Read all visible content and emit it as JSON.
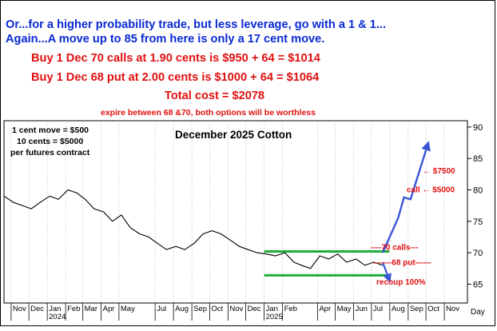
{
  "header": {
    "line1": "Or...for a higher probability trade, but less leverage, go with a 1 & 1...",
    "line2": "Again...A move up to 85 from here is only a 17 cent move.",
    "line3": "Buy 1 Dec 70 calls at 1.90 cents is $950 + 64 = $1014",
    "line4": "Buy 1 Dec 68 put at 2.00 cents is $1000 + 64 = $1064",
    "line5": "Total cost = $2078",
    "line6": "expire between 68 &70, both options will be worthless",
    "color_blue": "#0a2ad4",
    "color_red": "#e01010"
  },
  "legend_note": {
    "line1": "1 cent move = $500",
    "line2": "10 cents = $5000",
    "line3": "per futures contract"
  },
  "chart_data": {
    "type": "line",
    "title": "December 2025 Cotton",
    "ylim": [
      62,
      91
    ],
    "yticks": [
      65,
      70,
      75,
      80,
      85,
      90
    ],
    "xlabel_right": "Day",
    "month_labels": [
      "Nov",
      "Dec",
      "Jan",
      "Feb",
      "Mar",
      "Apr",
      "May",
      "Jul",
      "Aug",
      "Sep",
      "Oct",
      "Nov",
      "Dec",
      "Jan",
      "Feb",
      "Apr",
      "May",
      "Jun",
      "Jul",
      "Aug",
      "Sep",
      "Oct",
      "Nov"
    ],
    "year_labels": [
      "2024",
      "2025"
    ],
    "x_range": [
      "2023-10-20",
      "2025-12-10"
    ],
    "month_dates": [
      "2023-11-01",
      "2023-12-01",
      "2024-01-01",
      "2024-02-01",
      "2024-03-01",
      "2024-04-01",
      "2024-05-01",
      "2024-07-01",
      "2024-08-01",
      "2024-09-01",
      "2024-10-01",
      "2024-11-01",
      "2024-12-01",
      "2025-01-01",
      "2025-02-01",
      "2025-04-01",
      "2025-05-01",
      "2025-06-01",
      "2025-07-01",
      "2025-08-01",
      "2025-09-01",
      "2025-10-01",
      "2025-11-01"
    ],
    "year_dates": [
      "2024-01-01",
      "2025-01-01"
    ],
    "series": [
      {
        "x": [
          "2023-10-20",
          "2023-11-05",
          "2023-11-20",
          "2023-12-05",
          "2023-12-20",
          "2024-01-05",
          "2024-01-20",
          "2024-02-05",
          "2024-02-20",
          "2024-03-05",
          "2024-03-20",
          "2024-04-05",
          "2024-04-20",
          "2024-05-05",
          "2024-05-20",
          "2024-06-05",
          "2024-06-20",
          "2024-07-05",
          "2024-07-20",
          "2024-08-05",
          "2024-08-20",
          "2024-09-05",
          "2024-09-20",
          "2024-10-05",
          "2024-10-20",
          "2024-11-05",
          "2024-11-20",
          "2024-12-05",
          "2024-12-20",
          "2025-01-05",
          "2025-01-20",
          "2025-02-05",
          "2025-02-20",
          "2025-03-05",
          "2025-03-20",
          "2025-04-05",
          "2025-04-20",
          "2025-05-05",
          "2025-05-20",
          "2025-06-05",
          "2025-06-20",
          "2025-07-05",
          "2025-07-20"
        ],
        "y": [
          79.0,
          78.0,
          77.5,
          77.0,
          78.0,
          79.0,
          78.5,
          80.0,
          79.5,
          78.5,
          77.0,
          76.5,
          75.0,
          76.0,
          74.0,
          73.0,
          72.5,
          71.5,
          70.5,
          71.0,
          70.5,
          71.5,
          73.0,
          73.5,
          73.0,
          72.0,
          71.0,
          70.5,
          70.0,
          69.8,
          69.5,
          70.0,
          68.5,
          68.0,
          67.5,
          69.5,
          69.0,
          69.8,
          68.5,
          69.0,
          68.0,
          68.5,
          68.0
        ]
      }
    ],
    "annotations": {
      "box_upper": 70.2,
      "box_lower": 66.4,
      "box_range": [
        "2025-01-01",
        "2025-07-31"
      ],
      "arrow_up": [
        [
          "2025-07-20",
          70.0
        ],
        [
          "2025-08-15",
          75.5
        ],
        [
          "2025-08-25",
          78.8
        ],
        [
          "2025-09-05",
          78.5
        ],
        [
          "2025-10-05",
          87.5
        ]
      ],
      "arrow_down": [
        [
          "2025-07-20",
          68.5
        ],
        [
          "2025-08-01",
          65.5
        ]
      ],
      "label_7500": "← $7500",
      "label_7500_level": 83.0,
      "label_5000": "call ← $5000",
      "label_5000_level": 80.0,
      "label_calls": "----70 calls---",
      "label_calls_level": 70.2,
      "label_put": "-------68 put------",
      "label_put_level": 68.4,
      "label_recoup": "recoup 100%",
      "label_recoup_level": 65.3,
      "color_box_lines": "#1fae3a",
      "color_arrow": "#3a56d6",
      "color_red": "#e01010",
      "color_price": "#000000"
    }
  }
}
